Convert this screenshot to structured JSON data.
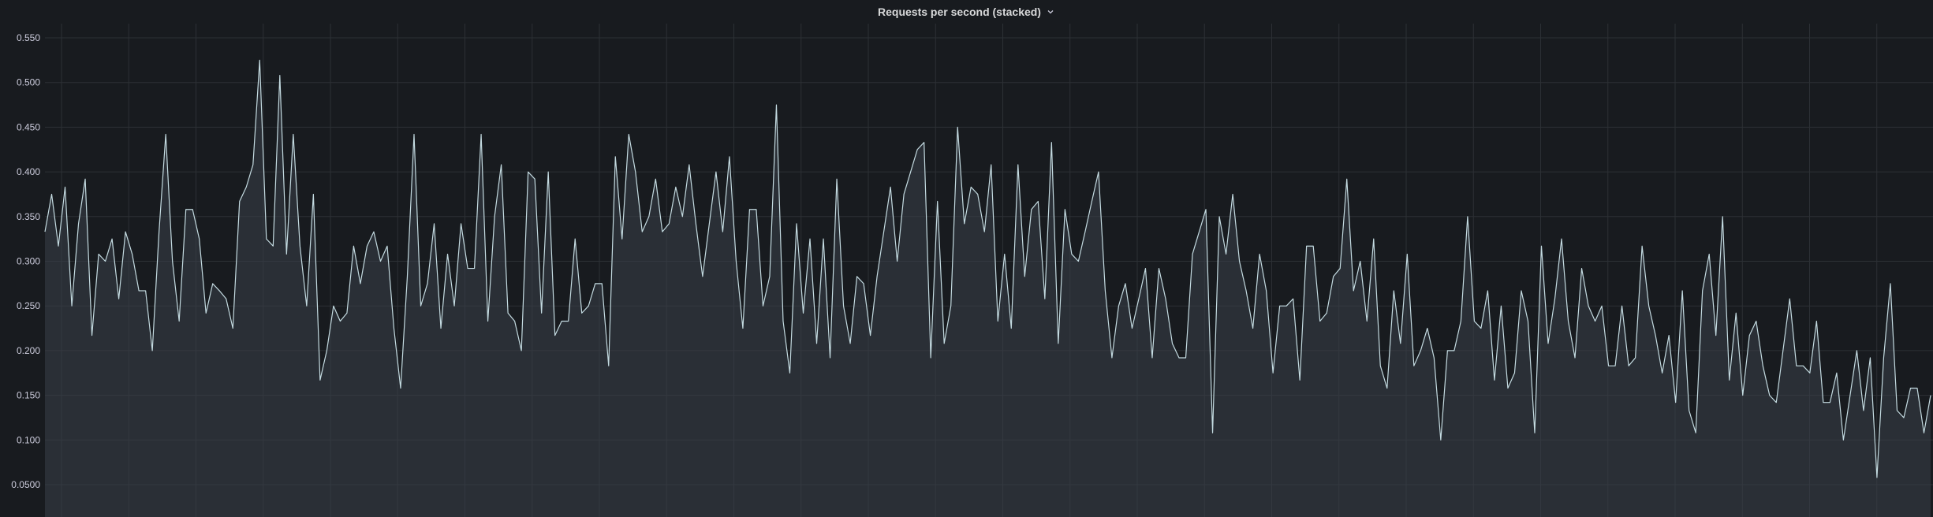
{
  "panel": {
    "title": "Requests per second (stacked)",
    "menu_icon": "chevron-down-icon"
  },
  "colors": {
    "background": "#181b1f",
    "grid": "#2c3035",
    "line": "#c4dbe1",
    "fill": "#3a4049",
    "tick_text": "#ccccdc"
  },
  "chart_data": {
    "type": "area",
    "stacked": true,
    "title": "Requests per second (stacked)",
    "xlabel": "",
    "ylabel": "",
    "ylim": [
      0,
      0.55
    ],
    "yticks": [
      0.55,
      0.5,
      0.45,
      0.4,
      0.35,
      0.3,
      0.25,
      0.2,
      0.15,
      0.1,
      0.05
    ],
    "ytick_labels": [
      "0.550",
      "0.500",
      "0.450",
      "0.400",
      "0.350",
      "0.300",
      "0.250",
      "0.200",
      "0.150",
      "0.100",
      "0.0500"
    ],
    "grid": true,
    "legend": "none",
    "series": [
      {
        "values": [
          0.333,
          0.375,
          0.317,
          0.383,
          0.25,
          0.342,
          0.392,
          0.217,
          0.308,
          0.3,
          0.325,
          0.258,
          0.333,
          0.308,
          0.267,
          0.267,
          0.2,
          0.333,
          0.442,
          0.3,
          0.233,
          0.358,
          0.358,
          0.325,
          0.242,
          0.275,
          0.267,
          0.258,
          0.225,
          0.367,
          0.383,
          0.408,
          0.525,
          0.325,
          0.317,
          0.508,
          0.308,
          0.442,
          0.317,
          0.25,
          0.375,
          0.167,
          0.2,
          0.25,
          0.233,
          0.242,
          0.317,
          0.275,
          0.317,
          0.333,
          0.3,
          0.317,
          0.225,
          0.158,
          0.283,
          0.442,
          0.25,
          0.275,
          0.342,
          0.225,
          0.308,
          0.25,
          0.342,
          0.292,
          0.292,
          0.442,
          0.233,
          0.35,
          0.408,
          0.242,
          0.233,
          0.2,
          0.4,
          0.392,
          0.242,
          0.4,
          0.217,
          0.233,
          0.233,
          0.325,
          0.242,
          0.25,
          0.275,
          0.275,
          0.183,
          0.417,
          0.325,
          0.442,
          0.4,
          0.333,
          0.35,
          0.392,
          0.333,
          0.342,
          0.383,
          0.35,
          0.408,
          0.342,
          0.283,
          0.342,
          0.4,
          0.333,
          0.417,
          0.3,
          0.225,
          0.358,
          0.358,
          0.25,
          0.283,
          0.475,
          0.233,
          0.175,
          0.342,
          0.242,
          0.325,
          0.208,
          0.325,
          0.192,
          0.392,
          0.25,
          0.208,
          0.283,
          0.275,
          0.217,
          0.283,
          0.333,
          0.383,
          0.3,
          0.375,
          0.4,
          0.425,
          0.433,
          0.192,
          0.367,
          0.208,
          0.25,
          0.45,
          0.342,
          0.383,
          0.375,
          0.333,
          0.408,
          0.233,
          0.308,
          0.225,
          0.408,
          0.283,
          0.358,
          0.367,
          0.258,
          0.433,
          0.208,
          0.358,
          0.308,
          0.3,
          0.333,
          0.367,
          0.4,
          0.267,
          0.192,
          0.25,
          0.275,
          0.225,
          0.258,
          0.292,
          0.192,
          0.292,
          0.258,
          0.208,
          0.192,
          0.192,
          0.308,
          0.333,
          0.358,
          0.108,
          0.35,
          0.308,
          0.375,
          0.3,
          0.267,
          0.225,
          0.308,
          0.267,
          0.175,
          0.25,
          0.25,
          0.258,
          0.167,
          0.317,
          0.317,
          0.233,
          0.242,
          0.283,
          0.292,
          0.392,
          0.267,
          0.3,
          0.233,
          0.325,
          0.183,
          0.158,
          0.267,
          0.208,
          0.308,
          0.183,
          0.2,
          0.225,
          0.192,
          0.1,
          0.2,
          0.2,
          0.233,
          0.35,
          0.233,
          0.225,
          0.267,
          0.167,
          0.25,
          0.158,
          0.175,
          0.267,
          0.233,
          0.108,
          0.317,
          0.208,
          0.258,
          0.325,
          0.233,
          0.192,
          0.292,
          0.25,
          0.233,
          0.25,
          0.183,
          0.183,
          0.25,
          0.183,
          0.192,
          0.317,
          0.25,
          0.217,
          0.175,
          0.217,
          0.142,
          0.267,
          0.133,
          0.108,
          0.267,
          0.308,
          0.217,
          0.35,
          0.167,
          0.242,
          0.15,
          0.217,
          0.233,
          0.183,
          0.15,
          0.142,
          0.2,
          0.258,
          0.183,
          0.183,
          0.175,
          0.233,
          0.142,
          0.142,
          0.175,
          0.1,
          0.15,
          0.2,
          0.133,
          0.192,
          0.058,
          0.192,
          0.275,
          0.133,
          0.125,
          0.158,
          0.158,
          0.108,
          0.15
        ]
      }
    ]
  }
}
